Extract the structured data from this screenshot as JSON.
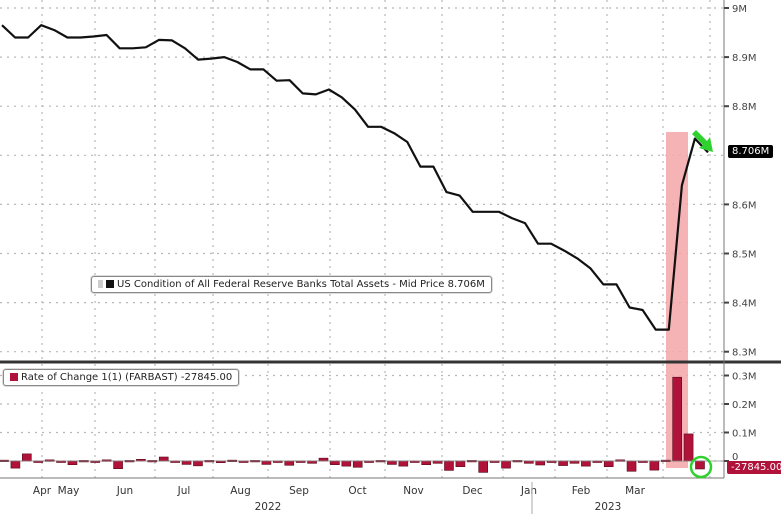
{
  "chart_data": [
    {
      "type": "line",
      "title": "US Condition of All Federal Reserve Banks Total Assets - Mid Price 8.706M",
      "legend": {
        "label": "US Condition of All Federal Reserve Banks Total Assets - Mid Price 8.706M",
        "position": "lower-left"
      },
      "ylabel": "",
      "ylim": [
        8.28,
        9.0
      ],
      "y_ticks": [
        "9M",
        "8.9M",
        "8.8M",
        "8.6M",
        "8.5M",
        "8.4M",
        "8.3M"
      ],
      "last_value_label": "8.706M",
      "grid": true,
      "series_name": "FARBAST",
      "x_months": [
        "Apr",
        "May",
        "Jun",
        "Jul",
        "Aug",
        "Sep",
        "Oct",
        "Nov",
        "Dec",
        "Jan",
        "Feb",
        "Mar"
      ],
      "x_years": [
        "2022",
        "2023"
      ],
      "values_millions_weekly": [
        8.965,
        8.94,
        8.94,
        8.965,
        8.955,
        8.94,
        8.94,
        8.942,
        8.945,
        8.918,
        8.918,
        8.92,
        8.935,
        8.934,
        8.918,
        8.895,
        8.897,
        8.9,
        8.89,
        8.875,
        8.875,
        8.852,
        8.853,
        8.826,
        8.824,
        8.834,
        8.818,
        8.793,
        8.758,
        8.758,
        8.745,
        8.727,
        8.677,
        8.677,
        8.625,
        8.618,
        8.585,
        8.585,
        8.585,
        8.572,
        8.562,
        8.52,
        8.52,
        8.506,
        8.49,
        8.47,
        8.437,
        8.437,
        8.39,
        8.385,
        8.345,
        8.345,
        8.639,
        8.734,
        8.706
      ]
    },
    {
      "type": "bar",
      "title": "Rate of Change 1(1) (FARBAST) -27845.00",
      "legend": {
        "label": "Rate of Change 1(1) (FARBAST) -27845.00",
        "position": "upper-left"
      },
      "ylim": [
        -0.05,
        0.32
      ],
      "y_ticks": [
        "0.3M",
        "0.2M",
        "0.1M",
        "0"
      ],
      "last_value_label": "-27845.00",
      "values_millions_weekly": [
        0.003,
        -0.025,
        0.025,
        -0.003,
        0.004,
        0,
        -0.013,
        0.002,
        0,
        0.004,
        -0.027,
        0.002,
        0.006,
        0.002,
        0.014,
        -0.003,
        -0.012,
        -0.017,
        0.002,
        -0.006,
        0.003,
        -0.004,
        0.002,
        -0.012,
        -0.002,
        -0.015,
        -0.002,
        -0.008,
        0.01,
        -0.013,
        -0.018,
        -0.022,
        -0.002,
        0.002,
        -0.012,
        -0.018,
        -0.005,
        -0.013,
        -0.008,
        -0.033,
        -0.02,
        0.002,
        -0.04,
        -0.003,
        -0.025,
        0.002,
        -0.008,
        -0.014,
        0,
        -0.016,
        -0.008,
        -0.018,
        -0.003,
        -0.02,
        0.004,
        -0.036,
        -0.002,
        -0.032,
        0.003,
        0.294,
        0.095,
        -0.028
      ]
    }
  ],
  "annotations": {
    "highlight_color": "#f4a6a8",
    "arrow_color": "#2fd12f",
    "circle_color": "#2fd12f",
    "line_color": "#111111",
    "bar_color": "#b0123a"
  }
}
